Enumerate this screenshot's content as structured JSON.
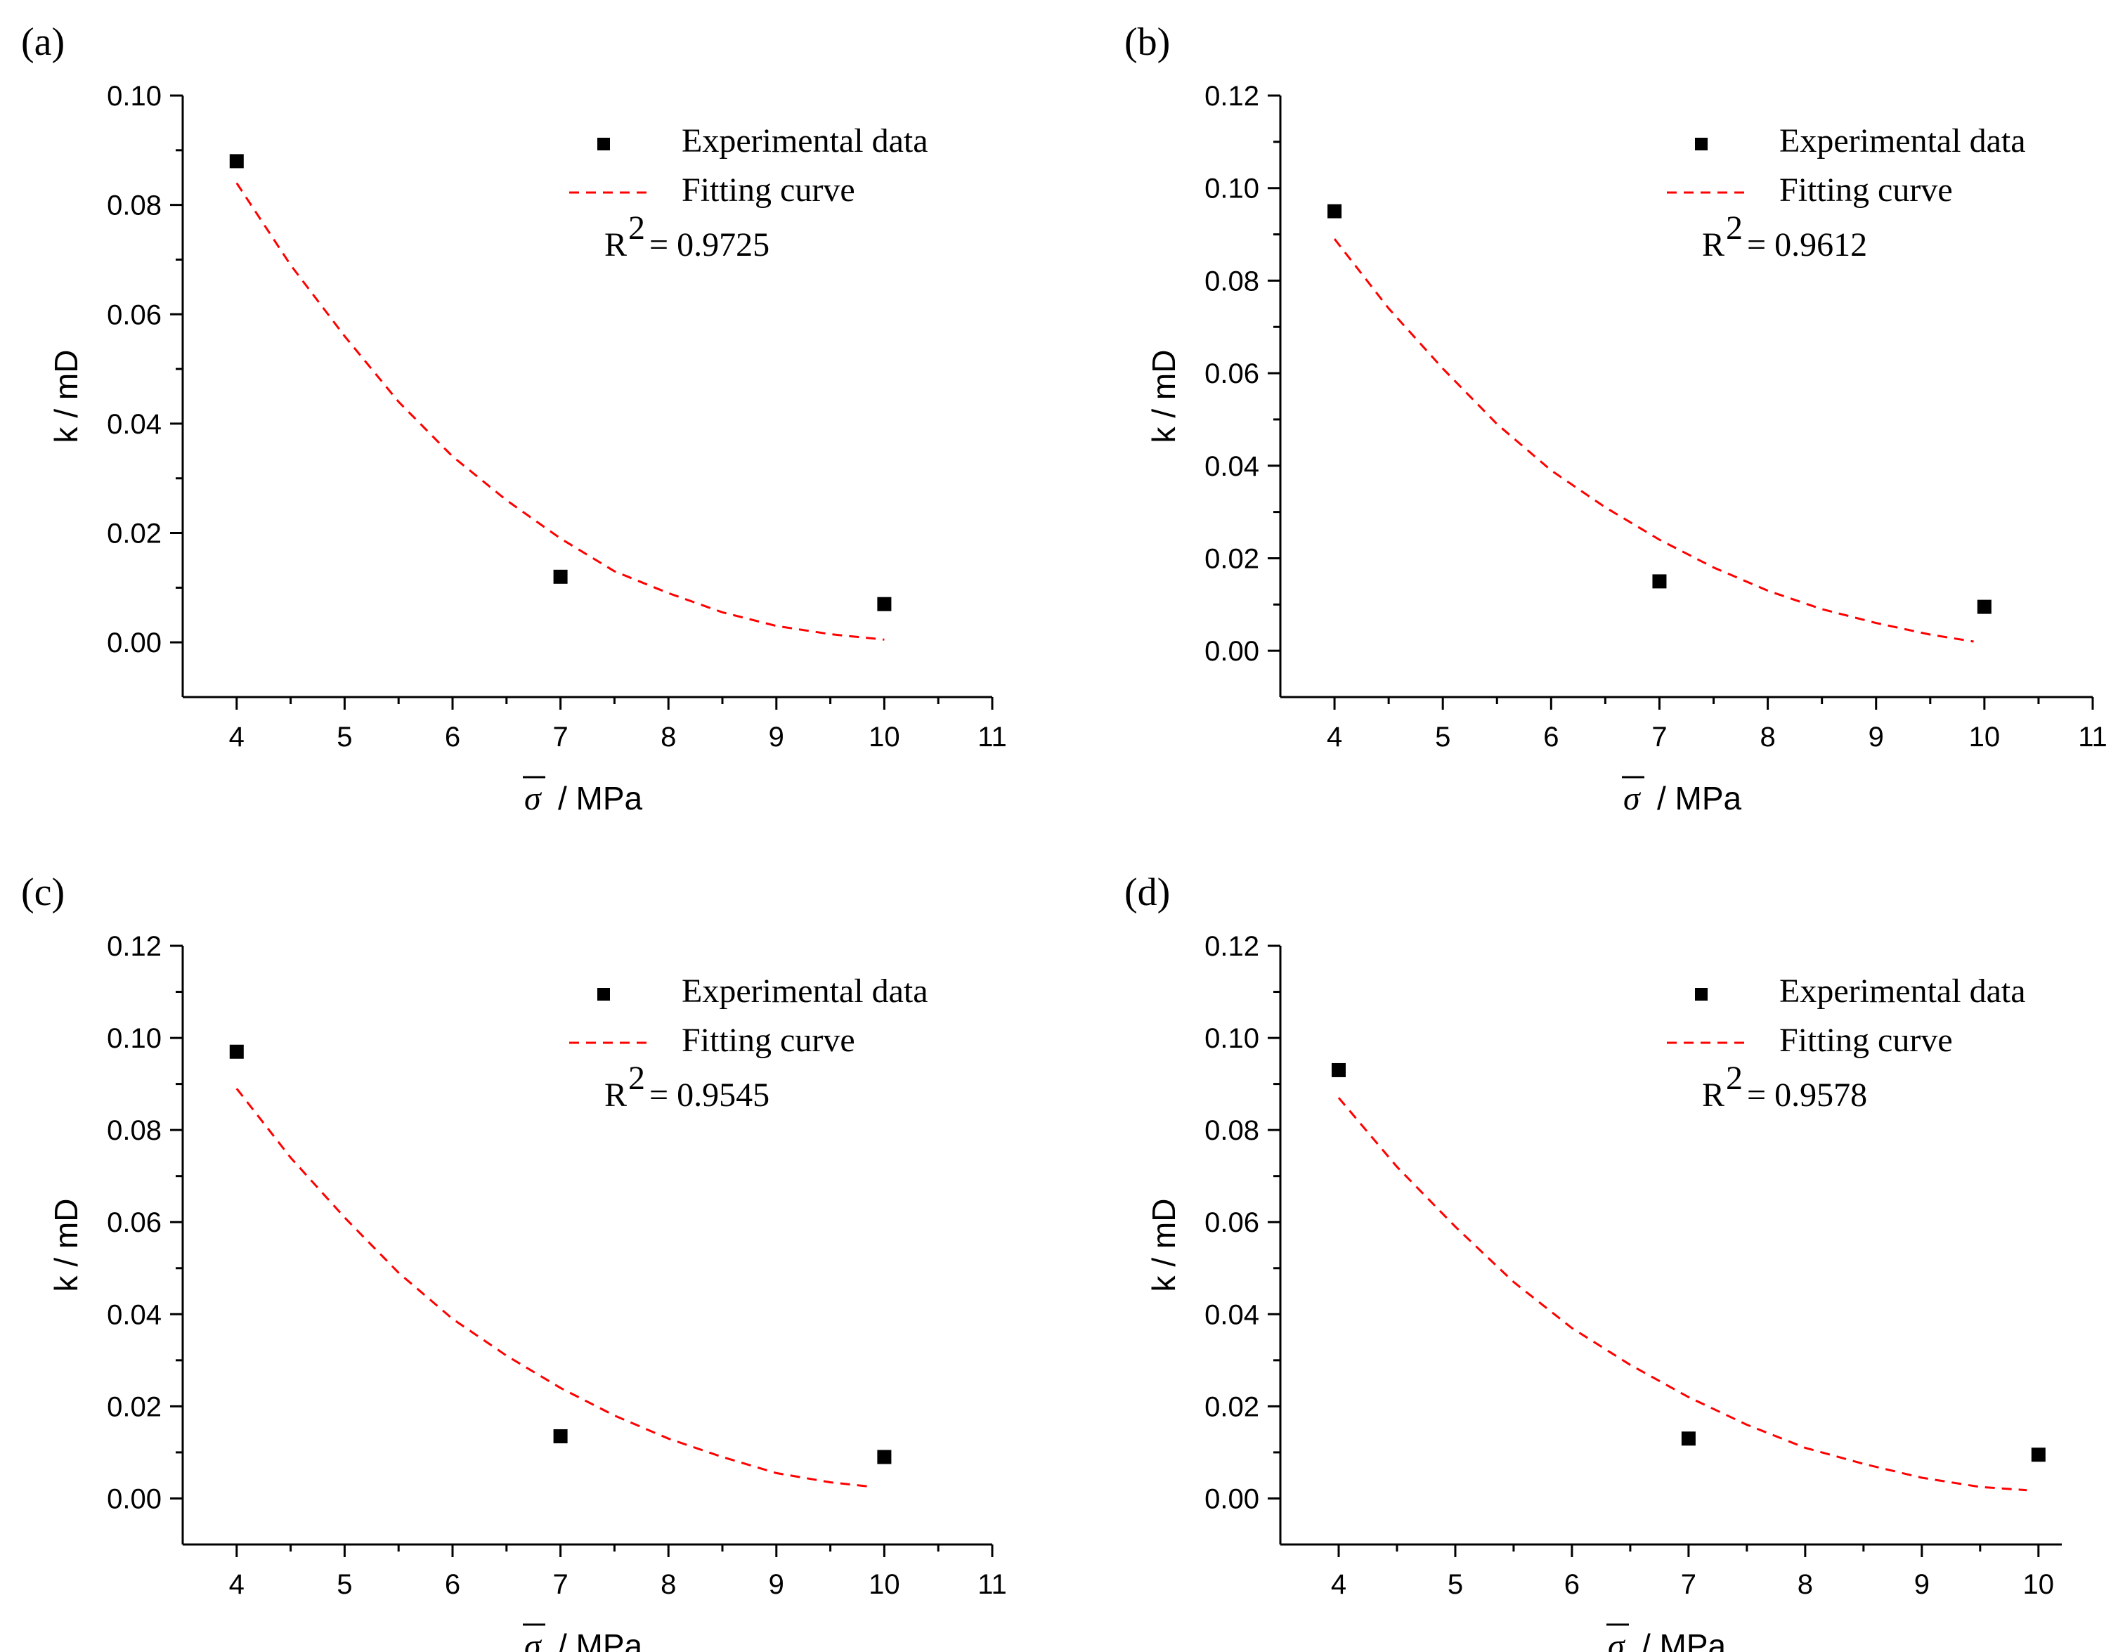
{
  "figure": {
    "legend_marker_label": "Experimental data",
    "legend_line_label": "Fitting curve",
    "r2_prefix": "R",
    "r2_exponent": "2",
    "xaxis_symbol": "σ",
    "xaxis_unit": " / MPa",
    "yaxis_label": "k / mD",
    "colors": {
      "points": "#000000",
      "fit": "#ff0000",
      "axes": "#000000"
    }
  },
  "chart_data": [
    {
      "type": "scatter",
      "panel": "(a)",
      "r2": "= 0.9725",
      "legend_position": "top-right",
      "xlim": [
        3.5,
        11
      ],
      "xticks": [
        4,
        5,
        6,
        7,
        8,
        9,
        10,
        11
      ],
      "ylim": [
        -0.01,
        0.1
      ],
      "yticks": [
        0.0,
        0.02,
        0.04,
        0.06,
        0.08,
        0.1
      ],
      "series": [
        {
          "name": "Experimental data",
          "kind": "points",
          "x": [
            4,
            7,
            10
          ],
          "y": [
            0.088,
            0.012,
            0.007
          ]
        },
        {
          "name": "Fitting curve",
          "kind": "dashed-line",
          "x": [
            4,
            4.5,
            5,
            5.5,
            6,
            6.5,
            7,
            7.5,
            8,
            8.5,
            9,
            9.5,
            10
          ],
          "y": [
            0.084,
            0.069,
            0.056,
            0.044,
            0.034,
            0.026,
            0.019,
            0.013,
            0.009,
            0.0055,
            0.003,
            0.0015,
            0.0005
          ]
        }
      ]
    },
    {
      "type": "scatter",
      "panel": "(b)",
      "r2": "= 0.9612",
      "legend_position": "top-right",
      "xlim": [
        3.5,
        11
      ],
      "xticks": [
        4,
        5,
        6,
        7,
        8,
        9,
        10,
        11
      ],
      "ylim": [
        -0.01,
        0.12
      ],
      "yticks": [
        0.0,
        0.02,
        0.04,
        0.06,
        0.08,
        0.1,
        0.12
      ],
      "series": [
        {
          "name": "Experimental data",
          "kind": "points",
          "x": [
            4,
            7,
            10
          ],
          "y": [
            0.095,
            0.015,
            0.0095
          ]
        },
        {
          "name": "Fitting curve",
          "kind": "dashed-line",
          "x": [
            4,
            4.5,
            5,
            5.5,
            6,
            6.5,
            7,
            7.5,
            8,
            8.5,
            9,
            9.5,
            9.9
          ],
          "y": [
            0.089,
            0.074,
            0.061,
            0.049,
            0.039,
            0.031,
            0.024,
            0.018,
            0.013,
            0.009,
            0.006,
            0.0035,
            0.002
          ]
        }
      ]
    },
    {
      "type": "scatter",
      "panel": "(c)",
      "r2": "= 0.9545",
      "legend_position": "top-right",
      "xlim": [
        3.5,
        11
      ],
      "xticks": [
        4,
        5,
        6,
        7,
        8,
        9,
        10,
        11
      ],
      "ylim": [
        -0.01,
        0.12
      ],
      "yticks": [
        0.0,
        0.02,
        0.04,
        0.06,
        0.08,
        0.1,
        0.12
      ],
      "series": [
        {
          "name": "Experimental data",
          "kind": "points",
          "x": [
            4,
            7,
            10
          ],
          "y": [
            0.097,
            0.0135,
            0.009
          ]
        },
        {
          "name": "Fitting curve",
          "kind": "dashed-line",
          "x": [
            4,
            4.5,
            5,
            5.5,
            6,
            6.5,
            7,
            7.5,
            8,
            8.5,
            9,
            9.5,
            9.9
          ],
          "y": [
            0.089,
            0.074,
            0.061,
            0.049,
            0.039,
            0.031,
            0.024,
            0.018,
            0.013,
            0.009,
            0.0055,
            0.0035,
            0.0025
          ]
        }
      ]
    },
    {
      "type": "scatter",
      "panel": "(d)",
      "r2": "= 0.9578",
      "legend_position": "top-right",
      "xlim": [
        3.5,
        10.2
      ],
      "xticks": [
        4,
        5,
        6,
        7,
        8,
        9,
        10
      ],
      "ylim": [
        -0.01,
        0.12
      ],
      "yticks": [
        0.0,
        0.02,
        0.04,
        0.06,
        0.08,
        0.1,
        0.12
      ],
      "series": [
        {
          "name": "Experimental data",
          "kind": "points",
          "x": [
            4,
            7,
            10
          ],
          "y": [
            0.093,
            0.013,
            0.0095
          ]
        },
        {
          "name": "Fitting curve",
          "kind": "dashed-line",
          "x": [
            4,
            4.5,
            5,
            5.5,
            6,
            6.5,
            7,
            7.5,
            8,
            8.5,
            9,
            9.5,
            9.9
          ],
          "y": [
            0.087,
            0.072,
            0.059,
            0.047,
            0.037,
            0.029,
            0.022,
            0.016,
            0.011,
            0.0075,
            0.0045,
            0.0025,
            0.0018
          ]
        }
      ]
    }
  ]
}
